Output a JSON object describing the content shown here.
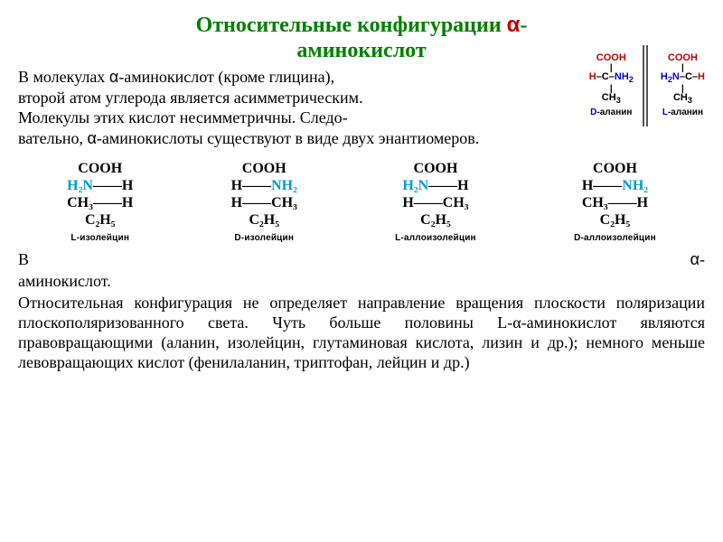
{
  "title": {
    "line1": "Относительные конфигурации ",
    "alpha": "α",
    "line2": "-",
    "line3": "аминокислот"
  },
  "intro": {
    "p1a": "   В молекулах ",
    "p1alpha": "α",
    "p1b": "-аминокислот (кроме глицина),",
    "p2": "второй атом углерода является асимметрическим.",
    "p3": "Молекулы этих кислот несимметричны. Следо-"
  },
  "continue": {
    "a": "вательно, ",
    "alpha": "α",
    "b": "-аминокислоты существуют в виде двух энантиомеров."
  },
  "alanine": {
    "left": {
      "cooh": "COOH",
      "line2_pre": "H",
      "line2_mid": "–C–",
      "line2_post": "NH",
      "line2_sub": "2",
      "ch3": "CH",
      "ch3_sub": "3",
      "label_prefix": "D",
      "label": "-аланин",
      "colors": {
        "cooh": "#c00000",
        "h": "#c00000",
        "c": "#000000",
        "nh2": "#0000d0",
        "ch3": "#000000"
      }
    },
    "right": {
      "cooh": "COOH",
      "line2_pre": "H",
      "line2_presub": "2",
      "line2_pre2": "N",
      "line2_mid": "–C–",
      "line2_post": "H",
      "ch3": "CH",
      "ch3_sub": "3",
      "label_prefix": "L",
      "label": "-аланин",
      "colors": {
        "cooh": "#c00000",
        "h": "#c00000",
        "c": "#000000",
        "nh2": "#0000d0",
        "ch3": "#000000"
      }
    }
  },
  "iso": {
    "structures": [
      {
        "cooh": "COOH",
        "row2_left": "H₂N",
        "row2_right": "H",
        "row3_left": "CH₃",
        "row3_right": "H",
        "row4": "C₂H₅",
        "label": "L-изолейцин",
        "nh2_left": true
      },
      {
        "cooh": "COOH",
        "row2_left": "H",
        "row2_right": "NH₂",
        "row3_left": "H",
        "row3_right": "CH₃",
        "row4": "C₂H₅",
        "label": "D-изолейцин",
        "nh2_left": false
      },
      {
        "cooh": "COOH",
        "row2_left": "H₂N",
        "row2_right": "H",
        "row3_left": "H",
        "row3_right": "CH₃",
        "row4": "C₂H₅",
        "label": "L-аллоизолейцин",
        "nh2_left": true
      },
      {
        "cooh": "COOH",
        "row2_left": "H",
        "row2_right": "NH₂",
        "row3_left": "CH₃",
        "row3_right": "H",
        "row4": "C₂H₅",
        "label": "D-аллоизолейцин",
        "nh2_left": false
      }
    ]
  },
  "bottom": {
    "b1a": "В",
    "alpha": "α",
    "b1b": "-",
    "b2": "аминокислот.",
    "para": "Относительная конфигурация не определяет направление вращения плоскости поляризации плоскополяризованного света. Чуть больше половины L-α-аминокислот являются правовращающими (аланин, изолейцин, глутаминовая кислота, лизин и др.); немного меньше левовращающих кислот (фенилаланин, триптофан, лейцин и др.)"
  }
}
